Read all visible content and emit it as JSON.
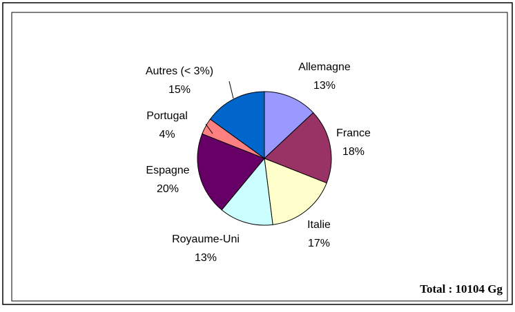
{
  "chart_data": {
    "type": "pie",
    "categories": [
      "Allemagne",
      "France",
      "Italie",
      "Royaume-Uni",
      "Espagne",
      "Portugal",
      "Autres (< 3%)"
    ],
    "values": [
      13,
      18,
      17,
      13,
      20,
      4,
      15
    ],
    "value_labels": [
      "13%",
      "18%",
      "17%",
      "13%",
      "20%",
      "4%",
      "15%"
    ],
    "colors": [
      "#9999ff",
      "#993366",
      "#ffffcc",
      "#ccffff",
      "#660066",
      "#ff8080",
      "#0066cc"
    ],
    "annotation": "Total : 10104 Gg"
  }
}
